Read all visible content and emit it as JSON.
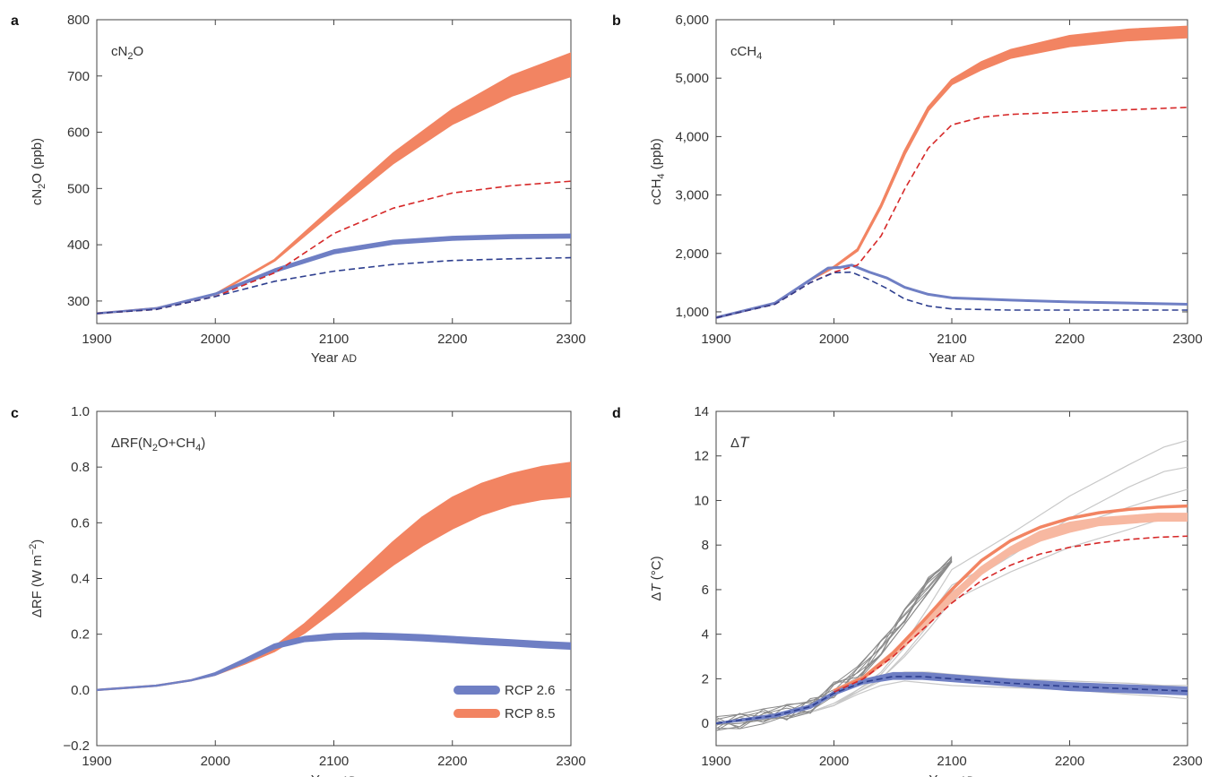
{
  "colors": {
    "rcp26": "#6f7fc4",
    "rcp85": "#f28462",
    "rcp85_light": "#f7b8a1",
    "dash_red": "#d62828",
    "dash_blue": "#2e3f8f",
    "ensemble_gray": "#8a8a8a",
    "ensemble_light": "#c8c8c8"
  },
  "legend": {
    "items": [
      {
        "label": "RCP 2.6",
        "color": "#6f7fc4"
      },
      {
        "label": "RCP 8.5",
        "color": "#f28462"
      }
    ]
  },
  "chart_data": [
    {
      "id": "a",
      "panel_letter": "a",
      "type": "line",
      "inset_label": {
        "main": "cN",
        "sub": "2",
        "tail": "O"
      },
      "xlabel": {
        "main": "Year ",
        "small": "AD"
      },
      "ylabel": {
        "main": "cN",
        "sub": "2",
        "tail": "O (ppb)"
      },
      "xlim": [
        1900,
        2300
      ],
      "ylim": [
        260,
        800
      ],
      "xticks": [
        1900,
        2000,
        2100,
        2200,
        2300
      ],
      "yticks": [
        300,
        400,
        500,
        600,
        700,
        800
      ],
      "ytick_labels": [
        "300",
        "400",
        "500",
        "600",
        "700",
        "800"
      ],
      "series": [
        {
          "kind": "band",
          "color_key": "rcp85",
          "x": [
            1900,
            1950,
            2000,
            2050,
            2100,
            2150,
            2200,
            2250,
            2300
          ],
          "lower": [
            278,
            287,
            312,
            372,
            460,
            545,
            615,
            665,
            700
          ],
          "upper": [
            278,
            287,
            312,
            373,
            468,
            562,
            640,
            700,
            740
          ]
        },
        {
          "kind": "band",
          "color_key": "rcp26",
          "x": [
            1900,
            1950,
            2000,
            2050,
            2100,
            2150,
            2200,
            2250,
            2300
          ],
          "lower": [
            278,
            287,
            312,
            352,
            385,
            402,
            409,
            412,
            413
          ],
          "upper": [
            278,
            287,
            313,
            356,
            390,
            407,
            414,
            417,
            418
          ]
        },
        {
          "kind": "dashed",
          "color_key": "dash_red",
          "x": [
            1900,
            1950,
            2000,
            2050,
            2100,
            2150,
            2200,
            2250,
            2300
          ],
          "y": [
            278,
            285,
            308,
            350,
            420,
            465,
            492,
            505,
            513
          ]
        },
        {
          "kind": "dashed",
          "color_key": "dash_blue",
          "x": [
            1900,
            1950,
            2000,
            2050,
            2100,
            2150,
            2200,
            2250,
            2300
          ],
          "y": [
            278,
            285,
            308,
            335,
            353,
            365,
            372,
            375,
            377
          ]
        }
      ]
    },
    {
      "id": "b",
      "panel_letter": "b",
      "type": "line",
      "inset_label": {
        "main": "cCH",
        "sub": "4",
        "tail": ""
      },
      "xlabel": {
        "main": "Year ",
        "small": "AD"
      },
      "ylabel": {
        "main": "cCH",
        "sub": "4",
        "tail": " (ppb)"
      },
      "xlim": [
        1900,
        2300
      ],
      "ylim": [
        800,
        6000
      ],
      "xticks": [
        1900,
        2000,
        2100,
        2200,
        2300
      ],
      "yticks": [
        1000,
        2000,
        3000,
        4000,
        5000,
        6000
      ],
      "ytick_labels": [
        "1,000",
        "2,000",
        "3,000",
        "4,000",
        "5,000",
        "6,000"
      ],
      "series": [
        {
          "kind": "band",
          "color_key": "rcp85",
          "x": [
            1900,
            1950,
            1980,
            2000,
            2020,
            2040,
            2060,
            2080,
            2100,
            2125,
            2150,
            2200,
            2250,
            2300
          ],
          "lower": [
            900,
            1150,
            1550,
            1760,
            2050,
            2800,
            3700,
            4450,
            4900,
            5150,
            5350,
            5550,
            5650,
            5700
          ],
          "upper": [
            900,
            1150,
            1550,
            1770,
            2070,
            2830,
            3750,
            4500,
            4970,
            5270,
            5480,
            5720,
            5830,
            5880
          ]
        },
        {
          "kind": "line",
          "color_key": "rcp26",
          "width": 3,
          "x": [
            1900,
            1950,
            1980,
            1995,
            2005,
            2015,
            2030,
            2045,
            2060,
            2080,
            2100,
            2150,
            2200,
            2250,
            2300
          ],
          "y": [
            900,
            1150,
            1550,
            1750,
            1760,
            1800,
            1680,
            1580,
            1420,
            1300,
            1240,
            1200,
            1170,
            1150,
            1130
          ]
        },
        {
          "kind": "dashed",
          "color_key": "dash_red",
          "x": [
            1900,
            1950,
            1980,
            2000,
            2020,
            2040,
            2060,
            2080,
            2100,
            2125,
            2150,
            2200,
            2250,
            2300
          ],
          "y": [
            900,
            1130,
            1500,
            1680,
            1800,
            2300,
            3100,
            3800,
            4200,
            4330,
            4380,
            4420,
            4460,
            4500
          ]
        },
        {
          "kind": "dashed",
          "color_key": "dash_blue",
          "x": [
            1900,
            1950,
            1980,
            2000,
            2015,
            2030,
            2045,
            2060,
            2080,
            2100,
            2150,
            2200,
            2300
          ],
          "y": [
            900,
            1130,
            1500,
            1670,
            1680,
            1550,
            1400,
            1220,
            1100,
            1050,
            1030,
            1030,
            1030
          ]
        }
      ]
    },
    {
      "id": "c",
      "panel_letter": "c",
      "type": "line",
      "inset_label": {
        "main": "ΔRF(N",
        "sub": "2",
        "tail": "O+CH",
        "sub2": "4",
        "tail2": ")"
      },
      "xlabel": {
        "main": "Year ",
        "small": "AD"
      },
      "ylabel": {
        "main": "ΔRF (W m",
        "sup": "−2",
        "tail": ")"
      },
      "xlim": [
        1900,
        2300
      ],
      "ylim": [
        -0.2,
        1.0
      ],
      "xticks": [
        1900,
        2000,
        2100,
        2200,
        2300
      ],
      "yticks": [
        -0.2,
        0.0,
        0.2,
        0.4,
        0.6,
        0.8,
        1.0
      ],
      "ytick_labels": [
        "−0.2",
        "0.0",
        "0.2",
        "0.4",
        "0.6",
        "0.8",
        "1.0"
      ],
      "series": [
        {
          "kind": "band",
          "color_key": "rcp85",
          "x": [
            1900,
            1950,
            1980,
            2000,
            2025,
            2050,
            2075,
            2100,
            2125,
            2150,
            2175,
            2200,
            2225,
            2250,
            2275,
            2300
          ],
          "lower": [
            0.0,
            0.015,
            0.035,
            0.055,
            0.095,
            0.14,
            0.205,
            0.285,
            0.37,
            0.45,
            0.52,
            0.58,
            0.63,
            0.665,
            0.685,
            0.695
          ],
          "upper": [
            0.0,
            0.015,
            0.035,
            0.058,
            0.1,
            0.155,
            0.235,
            0.33,
            0.43,
            0.53,
            0.62,
            0.69,
            0.74,
            0.775,
            0.8,
            0.815
          ]
        },
        {
          "kind": "band",
          "color_key": "rcp26",
          "x": [
            1900,
            1950,
            1980,
            2000,
            2025,
            2050,
            2075,
            2100,
            2125,
            2150,
            2175,
            2200,
            2225,
            2250,
            2275,
            2300
          ],
          "lower": [
            0.0,
            0.015,
            0.035,
            0.055,
            0.1,
            0.15,
            0.175,
            0.183,
            0.185,
            0.183,
            0.178,
            0.172,
            0.165,
            0.16,
            0.153,
            0.148
          ],
          "upper": [
            0.0,
            0.015,
            0.035,
            0.06,
            0.11,
            0.163,
            0.19,
            0.2,
            0.203,
            0.2,
            0.196,
            0.19,
            0.184,
            0.178,
            0.172,
            0.167
          ]
        }
      ]
    },
    {
      "id": "d",
      "panel_letter": "d",
      "type": "line",
      "inset_label": {
        "main": "Δ",
        "italic": "T"
      },
      "xlabel": {
        "main": "Year ",
        "small": "AD"
      },
      "ylabel": {
        "main": "Δ",
        "italic": "T",
        "tail": " (°C)"
      },
      "xlim": [
        1900,
        2300
      ],
      "ylim": [
        -1,
        14
      ],
      "xticks": [
        1900,
        2000,
        2100,
        2200,
        2300
      ],
      "yticks": [
        0,
        2,
        4,
        6,
        8,
        10,
        12,
        14
      ],
      "ytick_labels": [
        "0",
        "2",
        "4",
        "6",
        "8",
        "10",
        "12",
        "14"
      ],
      "ensemble": {
        "historical_x": [
          1900,
          1920,
          1940,
          1960,
          1980,
          2000,
          2020,
          2040,
          2060,
          2080,
          2100
        ],
        "members_85": [
          [
            0.0,
            0.1,
            0.3,
            0.5,
            0.8,
            1.5,
            2.2,
            3.4,
            4.8,
            6.2,
            7.6,
            8.8,
            9.7,
            10.2,
            10.5
          ],
          [
            0.0,
            0.1,
            0.3,
            0.5,
            0.9,
            1.4,
            2.0,
            3.1,
            4.4,
            5.9,
            7.5,
            9.2,
            10.6,
            11.3,
            11.5
          ],
          [
            0.0,
            0.1,
            0.3,
            0.5,
            0.8,
            1.5,
            2.3,
            3.6,
            5.2,
            6.9,
            8.5,
            10.2,
            11.6,
            12.4,
            12.7
          ],
          [
            0.0,
            0.1,
            0.3,
            0.5,
            0.8,
            1.4,
            2.0,
            3.0,
            4.2,
            5.5,
            6.8,
            7.9,
            8.7,
            9.2,
            9.4
          ]
        ],
        "members_26": [
          [
            0.0,
            0.1,
            0.3,
            0.5,
            0.8,
            1.4,
            1.9,
            2.1,
            2.1,
            1.9,
            1.7,
            1.5,
            1.3,
            1.2,
            1.1
          ],
          [
            0.0,
            0.1,
            0.3,
            0.5,
            0.9,
            1.5,
            2.1,
            2.3,
            2.3,
            2.2,
            2.0,
            1.9,
            1.8,
            1.7,
            1.7
          ],
          [
            0.0,
            0.1,
            0.3,
            0.5,
            0.8,
            1.3,
            1.7,
            1.9,
            1.8,
            1.7,
            1.6,
            1.5,
            1.5,
            1.4,
            1.4
          ]
        ],
        "future_x": [
          1900,
          1930,
          1960,
          1980,
          2000,
          2020,
          2040,
          2060,
          2080,
          2100,
          2150,
          2200,
          2250,
          2280,
          2300
        ]
      },
      "series": [
        {
          "kind": "band",
          "color_key": "rcp85_light",
          "x": [
            2000,
            2025,
            2050,
            2075,
            2100,
            2125,
            2150,
            2175,
            2200,
            2225,
            2250,
            2275,
            2300
          ],
          "lower": [
            1.4,
            2.0,
            3.0,
            4.2,
            5.5,
            6.7,
            7.6,
            8.2,
            8.6,
            8.9,
            9.0,
            9.1,
            9.1
          ],
          "upper": [
            1.5,
            2.1,
            3.2,
            4.5,
            5.8,
            7.0,
            7.9,
            8.6,
            9.0,
            9.2,
            9.3,
            9.4,
            9.4
          ]
        },
        {
          "kind": "line",
          "color_key": "rcp85",
          "width": 3.5,
          "x": [
            2000,
            2025,
            2050,
            2075,
            2100,
            2125,
            2150,
            2175,
            2200,
            2225,
            2250,
            2275,
            2300
          ],
          "y": [
            1.45,
            2.05,
            3.15,
            4.55,
            6.0,
            7.3,
            8.2,
            8.8,
            9.2,
            9.45,
            9.6,
            9.7,
            9.75
          ]
        },
        {
          "kind": "band",
          "color_key": "rcp26",
          "x": [
            1900,
            1950,
            1980,
            2000,
            2025,
            2050,
            2075,
            2100,
            2150,
            2200,
            2250,
            2300
          ],
          "lower": [
            0.0,
            0.3,
            0.7,
            1.3,
            1.8,
            2.0,
            2.0,
            1.9,
            1.7,
            1.5,
            1.4,
            1.3
          ],
          "upper": [
            0.0,
            0.4,
            0.8,
            1.4,
            1.95,
            2.25,
            2.25,
            2.15,
            1.95,
            1.8,
            1.7,
            1.6
          ]
        },
        {
          "kind": "dashed",
          "color_key": "dash_red",
          "x": [
            2000,
            2025,
            2050,
            2075,
            2100,
            2125,
            2150,
            2175,
            2200,
            2225,
            2250,
            2275,
            2300
          ],
          "y": [
            1.4,
            2.0,
            3.0,
            4.2,
            5.4,
            6.4,
            7.1,
            7.6,
            7.9,
            8.1,
            8.25,
            8.35,
            8.4
          ]
        },
        {
          "kind": "dashed",
          "color_key": "dash_blue",
          "x": [
            1900,
            1950,
            1980,
            2000,
            2025,
            2050,
            2075,
            2100,
            2150,
            2200,
            2250,
            2300
          ],
          "y": [
            0.0,
            0.35,
            0.75,
            1.35,
            1.85,
            2.1,
            2.1,
            2.0,
            1.8,
            1.65,
            1.55,
            1.45
          ]
        }
      ]
    }
  ]
}
